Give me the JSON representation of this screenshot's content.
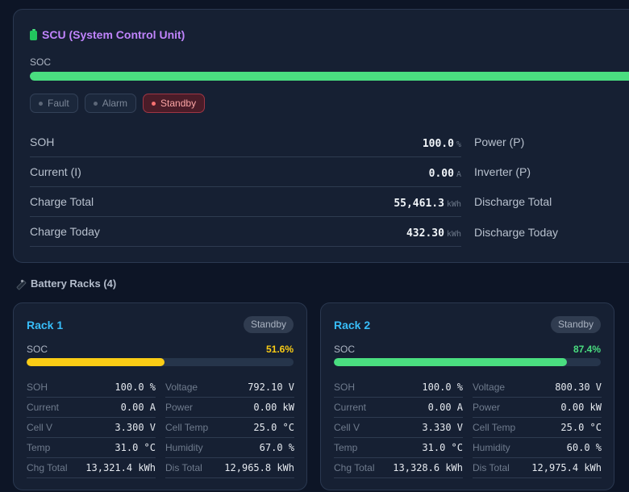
{
  "scu": {
    "title": "SCU (System Control Unit)",
    "soc_label": "SOC",
    "soc_percent": 100,
    "statuses": [
      {
        "label": "Fault",
        "active": false
      },
      {
        "label": "Alarm",
        "active": false
      },
      {
        "label": "Standby",
        "active": true
      }
    ],
    "rows": [
      {
        "label": "SOH",
        "value": "100.0",
        "unit": "%",
        "right_label": "Power (P)"
      },
      {
        "label": "Current (I)",
        "value": "0.00",
        "unit": "A",
        "right_label": "Inverter (P)"
      },
      {
        "label": "Charge Total",
        "value": "55,461.3",
        "unit": "kWh",
        "right_label": "Discharge Total"
      },
      {
        "label": "Charge Today",
        "value": "432.30",
        "unit": "kWh",
        "right_label": "Discharge Today"
      }
    ]
  },
  "racks_section": {
    "title": "Battery Racks (4)",
    "icon": "plug-icon"
  },
  "racks": [
    {
      "name": "Rack 1",
      "status": "Standby",
      "soc_label": "SOC",
      "soc_text": "51.6%",
      "soc_percent": 51.6,
      "soc_color": "#facc15",
      "metrics": [
        {
          "label": "SOH",
          "value": "100.0 %"
        },
        {
          "label": "Voltage",
          "value": "792.10 V"
        },
        {
          "label": "Current",
          "value": "0.00 A"
        },
        {
          "label": "Power",
          "value": "0.00 kW"
        },
        {
          "label": "Cell V",
          "value": "3.300 V"
        },
        {
          "label": "Cell Temp",
          "value": "25.0 °C"
        },
        {
          "label": "Temp",
          "value": "31.0 °C"
        },
        {
          "label": "Humidity",
          "value": "67.0 %"
        },
        {
          "label": "Chg Total",
          "value": "13,321.4 kWh"
        },
        {
          "label": "Dis Total",
          "value": "12,965.8 kWh"
        }
      ]
    },
    {
      "name": "Rack 2",
      "status": "Standby",
      "soc_label": "SOC",
      "soc_text": "87.4%",
      "soc_percent": 87.4,
      "soc_color": "#4ade80",
      "metrics": [
        {
          "label": "SOH",
          "value": "100.0 %"
        },
        {
          "label": "Voltage",
          "value": "800.30 V"
        },
        {
          "label": "Current",
          "value": "0.00 A"
        },
        {
          "label": "Power",
          "value": "0.00 kW"
        },
        {
          "label": "Cell V",
          "value": "3.330 V"
        },
        {
          "label": "Cell Temp",
          "value": "25.0 °C"
        },
        {
          "label": "Temp",
          "value": "31.0 °C"
        },
        {
          "label": "Humidity",
          "value": "60.0 %"
        },
        {
          "label": "Chg Total",
          "value": "13,328.6 kWh"
        },
        {
          "label": "Dis Total",
          "value": "12,975.4 kWh"
        }
      ]
    }
  ]
}
